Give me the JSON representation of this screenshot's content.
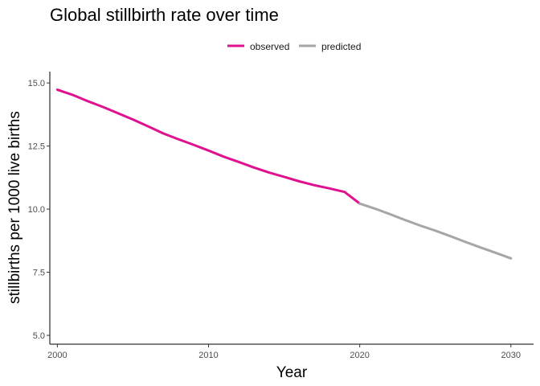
{
  "chart_data": {
    "type": "line",
    "title": "Global stillbirth rate over time",
    "xlabel": "Year",
    "ylabel": "stillbirths per 1000 live births",
    "xlim": [
      1999.5,
      2031.5
    ],
    "ylim": [
      4.65,
      15.45
    ],
    "x_ticks": [
      2000,
      2010,
      2020,
      2030
    ],
    "y_ticks": [
      5.0,
      7.5,
      10.0,
      12.5,
      15.0
    ],
    "y_tick_labels": [
      "5.0",
      "7.5",
      "10.0",
      "12.5",
      "15.0"
    ],
    "grid": false,
    "legend_position": "top",
    "series": [
      {
        "name": "observed",
        "color": "#e0118f",
        "x": [
          2000,
          2001,
          2002,
          2003,
          2004,
          2005,
          2006,
          2007,
          2008,
          2009,
          2010,
          2011,
          2012,
          2013,
          2014,
          2015,
          2016,
          2017,
          2018,
          2019,
          2020
        ],
        "y": [
          14.73,
          14.53,
          14.28,
          14.05,
          13.8,
          13.55,
          13.28,
          13.0,
          12.77,
          12.55,
          12.32,
          12.08,
          11.87,
          11.65,
          11.45,
          11.28,
          11.1,
          10.95,
          10.82,
          10.68,
          10.22
        ]
      },
      {
        "name": "predicted",
        "color": "#a6a6a6",
        "x": [
          2020,
          2021,
          2022,
          2023,
          2024,
          2025,
          2026,
          2027,
          2028,
          2029,
          2030
        ],
        "y": [
          10.22,
          10.02,
          9.8,
          9.57,
          9.35,
          9.15,
          8.93,
          8.7,
          8.48,
          8.27,
          8.05
        ]
      }
    ]
  }
}
